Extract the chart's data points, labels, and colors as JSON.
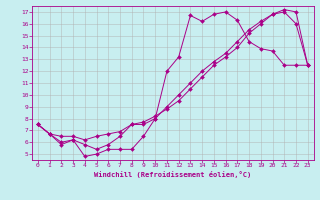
{
  "xlabel": "Windchill (Refroidissement éolien,°C)",
  "bg_color": "#c8eef0",
  "line_color": "#aa0088",
  "grid_color": "#b0b0b0",
  "xlim": [
    -0.5,
    23.5
  ],
  "ylim": [
    4.5,
    17.5
  ],
  "yticks": [
    5,
    6,
    7,
    8,
    9,
    10,
    11,
    12,
    13,
    14,
    15,
    16,
    17
  ],
  "xticks": [
    0,
    1,
    2,
    3,
    4,
    5,
    6,
    7,
    8,
    9,
    10,
    11,
    12,
    13,
    14,
    15,
    16,
    17,
    18,
    19,
    20,
    21,
    22,
    23
  ],
  "series": [
    {
      "x": [
        0,
        1,
        2,
        3,
        4,
        5,
        6,
        7,
        8,
        9,
        10,
        11,
        12,
        13,
        14,
        15,
        16,
        17,
        18,
        19,
        20,
        21,
        22,
        23
      ],
      "y": [
        7.5,
        6.7,
        5.8,
        6.2,
        4.8,
        5.0,
        5.4,
        5.4,
        5.4,
        6.5,
        8.0,
        12.0,
        13.2,
        16.7,
        16.2,
        16.8,
        17.0,
        16.3,
        14.5,
        13.9,
        13.7,
        12.5,
        12.5,
        12.5
      ]
    },
    {
      "x": [
        0,
        1,
        2,
        3,
        4,
        5,
        6,
        7,
        8,
        9,
        10,
        11,
        12,
        13,
        14,
        15,
        16,
        17,
        18,
        19,
        20,
        21,
        22,
        23
      ],
      "y": [
        7.5,
        6.7,
        6.5,
        6.5,
        6.2,
        6.5,
        6.7,
        6.9,
        7.5,
        7.5,
        8.0,
        9.0,
        10.0,
        11.0,
        12.0,
        12.8,
        13.5,
        14.5,
        15.5,
        16.2,
        16.8,
        17.2,
        17.0,
        12.5
      ]
    },
    {
      "x": [
        0,
        1,
        2,
        3,
        4,
        5,
        6,
        7,
        8,
        9,
        10,
        11,
        12,
        13,
        14,
        15,
        16,
        17,
        18,
        19,
        20,
        21,
        22,
        23
      ],
      "y": [
        7.5,
        6.7,
        6.0,
        6.2,
        5.8,
        5.4,
        5.8,
        6.5,
        7.5,
        7.7,
        8.2,
        8.8,
        9.5,
        10.5,
        11.5,
        12.5,
        13.2,
        14.0,
        15.2,
        16.0,
        16.8,
        17.0,
        16.0,
        12.5
      ]
    }
  ]
}
